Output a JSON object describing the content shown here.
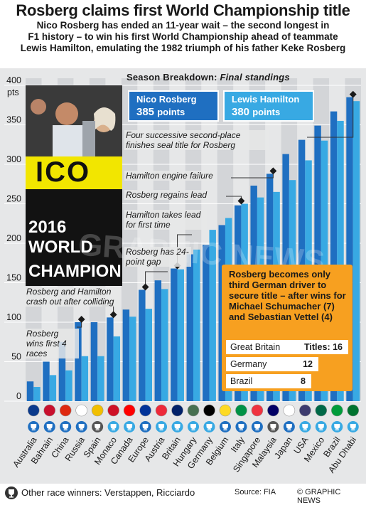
{
  "header": {
    "title": "Rosberg claims first World Championship title",
    "subtitle_lines": [
      "Nico Rosberg has ended an 11-year wait – the second longest in",
      "F1 history – to win his first World Championship ahead of teammate",
      "Lewis Hamilton, emulating the 1982 triumph of his father Keke Rosberg"
    ]
  },
  "season": {
    "label": "Season Breakdown:",
    "label_italic": "Final standings"
  },
  "drivers": [
    {
      "name": "Nico Rosberg",
      "points": "385",
      "unit": "points",
      "color": "#1f6fc1"
    },
    {
      "name": "Lewis Hamilton",
      "points": "380",
      "unit": "points",
      "color": "#38a9e3"
    }
  ],
  "annotations": [
    "Four successive second-place finishes seal title for Rosberg",
    "Hamilton engine failure",
    "Rosberg regains lead",
    "Hamilton takes lead for first time",
    "Rosberg has 24-point gap",
    "Rosberg and Hamilton crash out after colliding",
    "Rosberg wins first 4 races"
  ],
  "photo_text": {
    "banner1": "ICO",
    "banner2": "2016 WORLD",
    "banner3": "CHAMPION"
  },
  "watermark": "GRAPHIC NEWS",
  "winners_box": {
    "heading": "Rosberg becomes only third German driver to secure title – after wins for Michael Schumacher (7) and Sebastian Vettel (4)",
    "titles_label": "Titles:",
    "rows": [
      {
        "country": "Great Britain",
        "titles": "16"
      },
      {
        "country": "Germany",
        "titles": "12"
      },
      {
        "country": "Brazil",
        "titles": "8"
      }
    ]
  },
  "footer": {
    "other_winners": "Other race winners: Verstappen, Ricciardo",
    "source": "Source: FIA",
    "credit": "© GRAPHIC NEWS"
  },
  "colors": {
    "rosberg": "#1f6fc1",
    "hamilton": "#38a9e3",
    "accent": "#f7a020",
    "panel": "#e6e7e8"
  },
  "chart_data": {
    "type": "bar",
    "ylabel": "pts",
    "ylim": [
      0,
      400
    ],
    "yticks": [
      0,
      50,
      100,
      150,
      200,
      250,
      300,
      350,
      400
    ],
    "categories": [
      "Australia",
      "Bahrain",
      "China",
      "Russia",
      "Spain",
      "Monaco",
      "Canada",
      "Europe",
      "Austria",
      "Britain",
      "Hungary",
      "Germany",
      "Belgium",
      "Italy",
      "Singapore",
      "Malaysia",
      "Japan",
      "USA",
      "Mexico",
      "Brazil",
      "Abu Dhabi"
    ],
    "series": [
      {
        "name": "Nico Rosberg",
        "values": [
          25,
          50,
          75,
          100,
          100,
          106,
          116,
          141,
          153,
          168,
          186,
          198,
          223,
          248,
          273,
          288,
          313,
          331,
          349,
          367,
          385
        ]
      },
      {
        "name": "Lewis Hamilton",
        "values": [
          18,
          33,
          39,
          57,
          57,
          82,
          107,
          117,
          142,
          167,
          192,
          217,
          232,
          250,
          258,
          265,
          280,
          305,
          330,
          355,
          380
        ]
      }
    ],
    "winners": [
      "Rosberg",
      "Rosberg",
      "Rosberg",
      "Rosberg",
      "Verstappen",
      "Hamilton",
      "Hamilton",
      "Rosberg",
      "Hamilton",
      "Hamilton",
      "Hamilton",
      "Hamilton",
      "Rosberg",
      "Rosberg",
      "Rosberg",
      "Ricciardo",
      "Rosberg",
      "Hamilton",
      "Hamilton",
      "Hamilton",
      "Hamilton"
    ]
  }
}
